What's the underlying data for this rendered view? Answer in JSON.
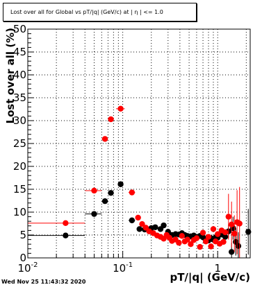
{
  "chart_data": {
    "type": "scatter",
    "title": "Lost over all for Global vs pT/|q| (GeV/c) at | η | <= 1.0",
    "xlabel": "pT/|q| (GeV/c)",
    "ylabel": "Lost over all (%)",
    "xscale": "log",
    "xlim": [
      0.01,
      2.2
    ],
    "ylim": [
      0,
      50
    ],
    "grid": true,
    "x_ticks": [
      {
        "value": 0.01,
        "label": "10",
        "exp": "-2"
      },
      {
        "value": 0.1,
        "label": "10",
        "exp": "-1"
      },
      {
        "value": 1,
        "label": "1",
        "exp": ""
      }
    ],
    "y_ticks": [
      0,
      5,
      10,
      15,
      20,
      25,
      30,
      35,
      40,
      45,
      50
    ],
    "series": [
      {
        "color": "#000000",
        "points": [
          {
            "x": 0.025,
            "y": 4.9,
            "xerr": [
              0.01,
              0.04
            ]
          },
          {
            "x": 0.05,
            "y": 9.6,
            "xerr": [
              0.04,
              0.06
            ]
          },
          {
            "x": 0.065,
            "y": 12.4,
            "xerr": [
              0.06,
              0.07
            ]
          },
          {
            "x": 0.075,
            "y": 14.2,
            "xerr": [
              0.07,
              0.08
            ]
          },
          {
            "x": 0.095,
            "y": 16.1,
            "xerr": [
              0.09,
              0.1
            ]
          },
          {
            "x": 0.125,
            "y": 8.2,
            "xerr": [
              0.115,
              0.135
            ]
          },
          {
            "x": 0.15,
            "y": 6.3
          },
          {
            "x": 0.17,
            "y": 6.2
          },
          {
            "x": 0.2,
            "y": 6.5
          },
          {
            "x": 0.22,
            "y": 6.7
          },
          {
            "x": 0.25,
            "y": 6.3
          },
          {
            "x": 0.27,
            "y": 7.1
          },
          {
            "x": 0.3,
            "y": 5.7
          },
          {
            "x": 0.33,
            "y": 5.0
          },
          {
            "x": 0.36,
            "y": 5.2
          },
          {
            "x": 0.39,
            "y": 5.1
          },
          {
            "x": 0.42,
            "y": 5.4
          },
          {
            "x": 0.45,
            "y": 5.0
          },
          {
            "x": 0.48,
            "y": 4.8
          },
          {
            "x": 0.52,
            "y": 4.7
          },
          {
            "x": 0.56,
            "y": 4.9
          },
          {
            "x": 0.6,
            "y": 4.6
          },
          {
            "x": 0.65,
            "y": 4.8
          },
          {
            "x": 0.7,
            "y": 4.5
          },
          {
            "x": 0.75,
            "y": 4.2
          },
          {
            "x": 0.8,
            "y": 3.8
          },
          {
            "x": 0.85,
            "y": 4.3
          },
          {
            "x": 0.9,
            "y": 4.0
          },
          {
            "x": 0.95,
            "y": 4.5
          },
          {
            "x": 1.0,
            "y": 4.4
          },
          {
            "x": 1.1,
            "y": 5.1
          },
          {
            "x": 1.2,
            "y": 4.6
          },
          {
            "x": 1.3,
            "y": 5.8,
            "yerr": 1.5
          },
          {
            "x": 1.4,
            "y": 1.3,
            "yerr": 2.0
          },
          {
            "x": 1.45,
            "y": 6.5,
            "yerr": 2.5
          },
          {
            "x": 1.55,
            "y": 3.5,
            "yerr": 3.0
          },
          {
            "x": 1.65,
            "y": 2.6,
            "yerr": 3.0
          },
          {
            "x": 2.1,
            "y": 5.7,
            "yerr": 5.0
          }
        ]
      },
      {
        "color": "#ff0000",
        "points": [
          {
            "x": 0.025,
            "y": 7.6,
            "xerr": [
              0.01,
              0.04
            ]
          },
          {
            "x": 0.05,
            "y": 14.7,
            "xerr": [
              0.04,
              0.06
            ]
          },
          {
            "x": 0.065,
            "y": 26.0,
            "xerr": [
              0.06,
              0.07
            ]
          },
          {
            "x": 0.075,
            "y": 30.3,
            "xerr": [
              0.07,
              0.08
            ]
          },
          {
            "x": 0.095,
            "y": 32.6,
            "xerr": [
              0.085,
              0.105
            ]
          },
          {
            "x": 0.125,
            "y": 14.3,
            "xerr": [
              0.115,
              0.135
            ]
          },
          {
            "x": 0.145,
            "y": 8.8
          },
          {
            "x": 0.16,
            "y": 7.4
          },
          {
            "x": 0.175,
            "y": 6.6
          },
          {
            "x": 0.19,
            "y": 5.8
          },
          {
            "x": 0.21,
            "y": 5.4
          },
          {
            "x": 0.23,
            "y": 4.9
          },
          {
            "x": 0.25,
            "y": 4.6
          },
          {
            "x": 0.27,
            "y": 4.2
          },
          {
            "x": 0.29,
            "y": 5.0
          },
          {
            "x": 0.31,
            "y": 4.4
          },
          {
            "x": 0.33,
            "y": 3.7
          },
          {
            "x": 0.36,
            "y": 4.0
          },
          {
            "x": 0.39,
            "y": 3.3
          },
          {
            "x": 0.42,
            "y": 4.8
          },
          {
            "x": 0.45,
            "y": 3.6
          },
          {
            "x": 0.48,
            "y": 4.0
          },
          {
            "x": 0.52,
            "y": 3.0
          },
          {
            "x": 0.56,
            "y": 3.9
          },
          {
            "x": 0.6,
            "y": 4.3
          },
          {
            "x": 0.65,
            "y": 2.4
          },
          {
            "x": 0.7,
            "y": 5.5
          },
          {
            "x": 0.75,
            "y": 3.6
          },
          {
            "x": 0.8,
            "y": 4.6
          },
          {
            "x": 0.85,
            "y": 2.5
          },
          {
            "x": 0.9,
            "y": 6.3
          },
          {
            "x": 0.95,
            "y": 3.6
          },
          {
            "x": 1.0,
            "y": 5.2
          },
          {
            "x": 1.05,
            "y": 3.1
          },
          {
            "x": 1.1,
            "y": 6.0
          },
          {
            "x": 1.15,
            "y": 3.5
          },
          {
            "x": 1.2,
            "y": 5.6
          },
          {
            "x": 1.3,
            "y": 9.0,
            "yerr": 5.0
          },
          {
            "x": 1.4,
            "y": 7.3,
            "yerr": 5.0
          },
          {
            "x": 1.5,
            "y": 5.3,
            "yerr": 4.0
          },
          {
            "x": 1.6,
            "y": 7.8,
            "yerr": 7.0
          },
          {
            "x": 1.7,
            "y": 7.5,
            "yerr": 8.0
          }
        ]
      }
    ]
  },
  "timestamp": "Wed Nov 25 11:43:32 2020"
}
